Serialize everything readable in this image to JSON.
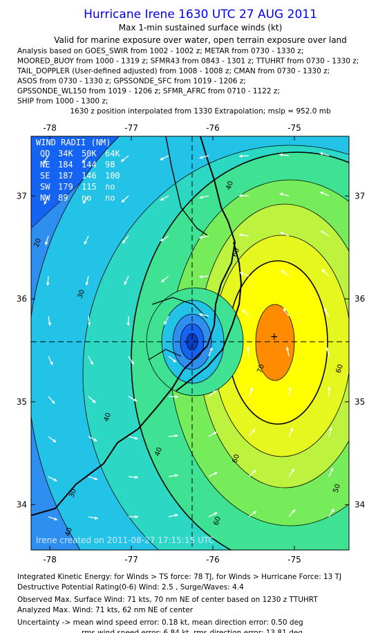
{
  "header": {
    "title": "Hurricane Irene 1630 UTC 27 AUG 2011",
    "subtitle": "Max 1-min sustained surface winds (kt)",
    "validity": "Valid for marine exposure over water, open terrain exposure over land",
    "analysis": [
      "Analysis based on GOES_SWIR from 1002 - 1002 z; METAR from 0730 - 1330 z;",
      "MOORED_BUOY from 1000 - 1319 z; SFMR43 from 0843 - 1301 z; TTUHRT from 0730 - 1330 z;",
      "TAIL_DOPPLER (User-defined adjusted) from 1008 - 1008 z; CMAN from 0730 - 1330 z;",
      "ASOS from 0730 - 1330 z; GPSSONDE_SFC from 1019 - 1206 z;",
      "GPSSONDE_WL150 from 1019 - 1206 z; SFMR_AFRC from 0710 - 1122 z;",
      "SHIP from 1000 - 1300 z;"
    ],
    "position": "1630 z position interpolated from 1330 Extrapolation; mslp = 952.0 mb"
  },
  "map": {
    "lonlim": [
      -78.23,
      -74.33
    ],
    "latlim": [
      33.56,
      37.58
    ],
    "lon_ticks": [
      -78,
      -77,
      -76,
      -75
    ],
    "lat_ticks": [
      34,
      35,
      36,
      37
    ],
    "contour_labels": [
      20,
      30,
      40,
      40,
      60,
      70,
      60,
      50,
      60,
      40,
      30,
      40,
      60
    ],
    "watermark": "Irene created on 2011-08-27 17:15:15 UTC",
    "radii": {
      "title": "WIND RADII (NM)",
      "rows": [
        [
          "QD",
          "34K",
          "50K",
          "64K"
        ],
        [
          "NE",
          "184",
          "144",
          "98"
        ],
        [
          "SE",
          "187",
          "146",
          "100"
        ],
        [
          "SW",
          "179",
          "115",
          "no"
        ],
        [
          "NW",
          "89",
          "no",
          "no"
        ]
      ]
    }
  },
  "footer": [
    "Integrated Kinetic Energy:  for Winds > TS force: 78 TJ,  for Winds > Hurricane Force: 13 TJ",
    "Destructive Potential Rating(0-6)   Wind: 2.5 , Surge/Waves: 4.4",
    "Observed Max. Surface Wind: 71 kts, 70 nm NE of center based on 1230 z TTUHRT",
    "Analyzed Max. Wind: 71 kts, 62 nm NE of center",
    "Uncertainty -> mean wind speed error: 0.18 kt,   mean direction error: 0.50 deg",
    "rms wind speed error: 6.84 kt,   rms direction error: 13.81 deg"
  ]
}
